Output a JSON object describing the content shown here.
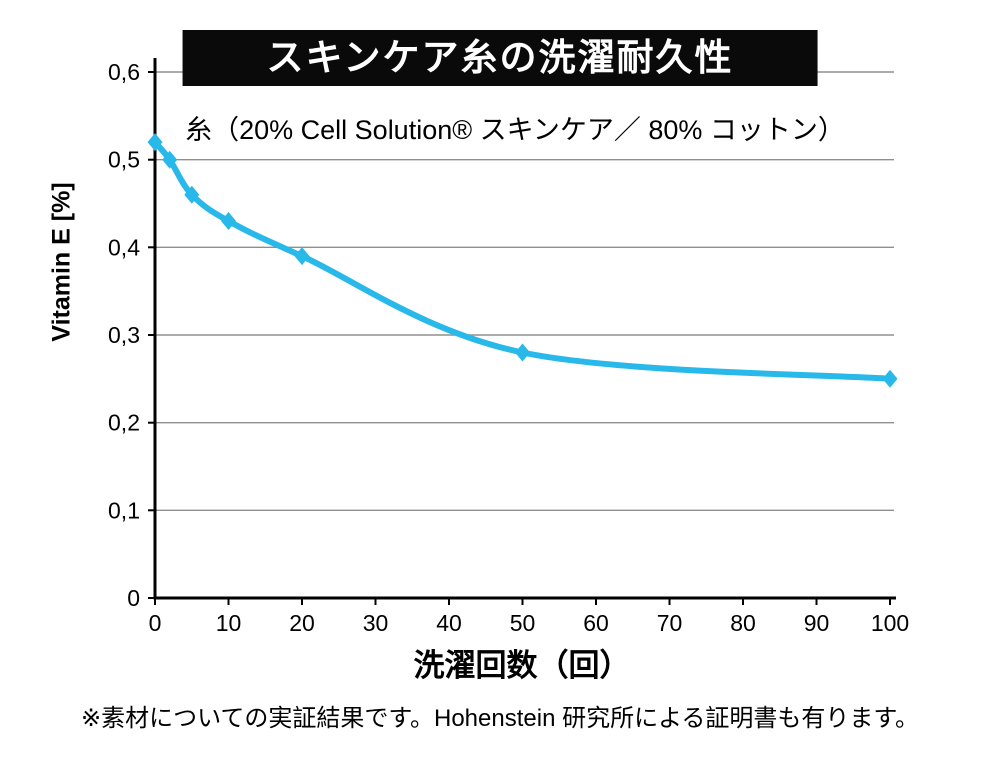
{
  "chart_data": {
    "type": "line",
    "title": "スキンケア糸の洗濯耐久性",
    "subtitle": "糸（20% Cell Solution® スキンケア／ 80% コットン）",
    "xlabel": "洗濯回数（回）",
    "ylabel": "Vitamin E [%]",
    "annotation": "※素材についての実証結果です。Hohenstein 研究所による証明書も有ります。",
    "x": [
      0,
      2,
      5,
      10,
      20,
      50,
      100
    ],
    "y": [
      0.52,
      0.5,
      0.46,
      0.43,
      0.39,
      0.28,
      0.25
    ],
    "series_name": "Vitamin E content",
    "xlim": [
      0,
      100
    ],
    "ylim": [
      0,
      0.6
    ],
    "x_ticks": [
      0,
      10,
      20,
      30,
      40,
      50,
      60,
      70,
      80,
      90,
      100
    ],
    "y_ticks": [
      0,
      0.1,
      0.2,
      0.3,
      0.4,
      0.5,
      0.6
    ],
    "y_tick_labels": [
      "0",
      "0,1",
      "0,2",
      "0,3",
      "0,4",
      "0,5",
      "0,6"
    ],
    "grid": "horizontal",
    "legend": "none",
    "marker": "diamond",
    "colors": {
      "line": "#29b8ea",
      "grid": "#8f8f8f",
      "axis": "#000000",
      "banner_bg": "#0a0a0a",
      "banner_text": "#ffffff"
    }
  }
}
